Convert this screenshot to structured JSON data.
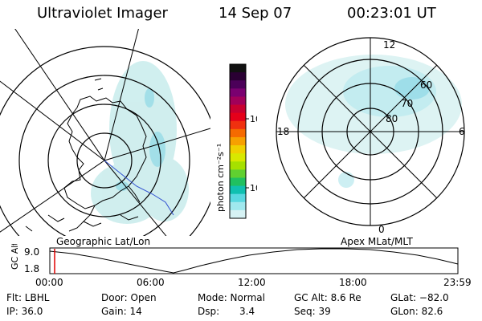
{
  "header": {
    "app_title": "Ultraviolet Imager",
    "date": "14 Sep 07",
    "time": "00:23:01 UT"
  },
  "colorbar": {
    "unit_label": "photon cm⁻²s⁻¹",
    "ticks": [
      "100",
      "10"
    ],
    "colors": [
      "#111111",
      "#2a0033",
      "#4b0059",
      "#7a0070",
      "#a1005a",
      "#c80030",
      "#e5001a",
      "#f0300f",
      "#f56a00",
      "#f7a000",
      "#f0d000",
      "#d8e800",
      "#a6e000",
      "#60d030",
      "#20c060",
      "#10c0b0",
      "#5ad8e0",
      "#a0e8ee",
      "#d6f2f4"
    ]
  },
  "left_map": {
    "label": "Geographic Lat/Lon"
  },
  "right_map": {
    "label": "Apex MLat/MLT",
    "lat_labels": [
      "80",
      "70",
      "60"
    ],
    "mlt_labels": {
      "top": "12",
      "bottom": "0",
      "left": "18",
      "right": "6"
    }
  },
  "altitude_plot": {
    "ylabel": "GC Alt",
    "y_ticks": [
      "9.0",
      "1.8"
    ],
    "x_ticks": [
      "00:00",
      "06:00",
      "12:00",
      "18:00",
      "23:59"
    ],
    "current_time_color": "#e00000"
  },
  "status": {
    "row1": [
      "Flt: LBHL",
      "Door: Open",
      "Mode: Normal",
      "GC Alt: 8.6 Re",
      "GLat: −82.0"
    ],
    "row2": [
      "IP: 36.0",
      "Gain: 14",
      "Dsp:",
      "3.4",
      "Seq: 39",
      "GLon:  82.6"
    ]
  }
}
